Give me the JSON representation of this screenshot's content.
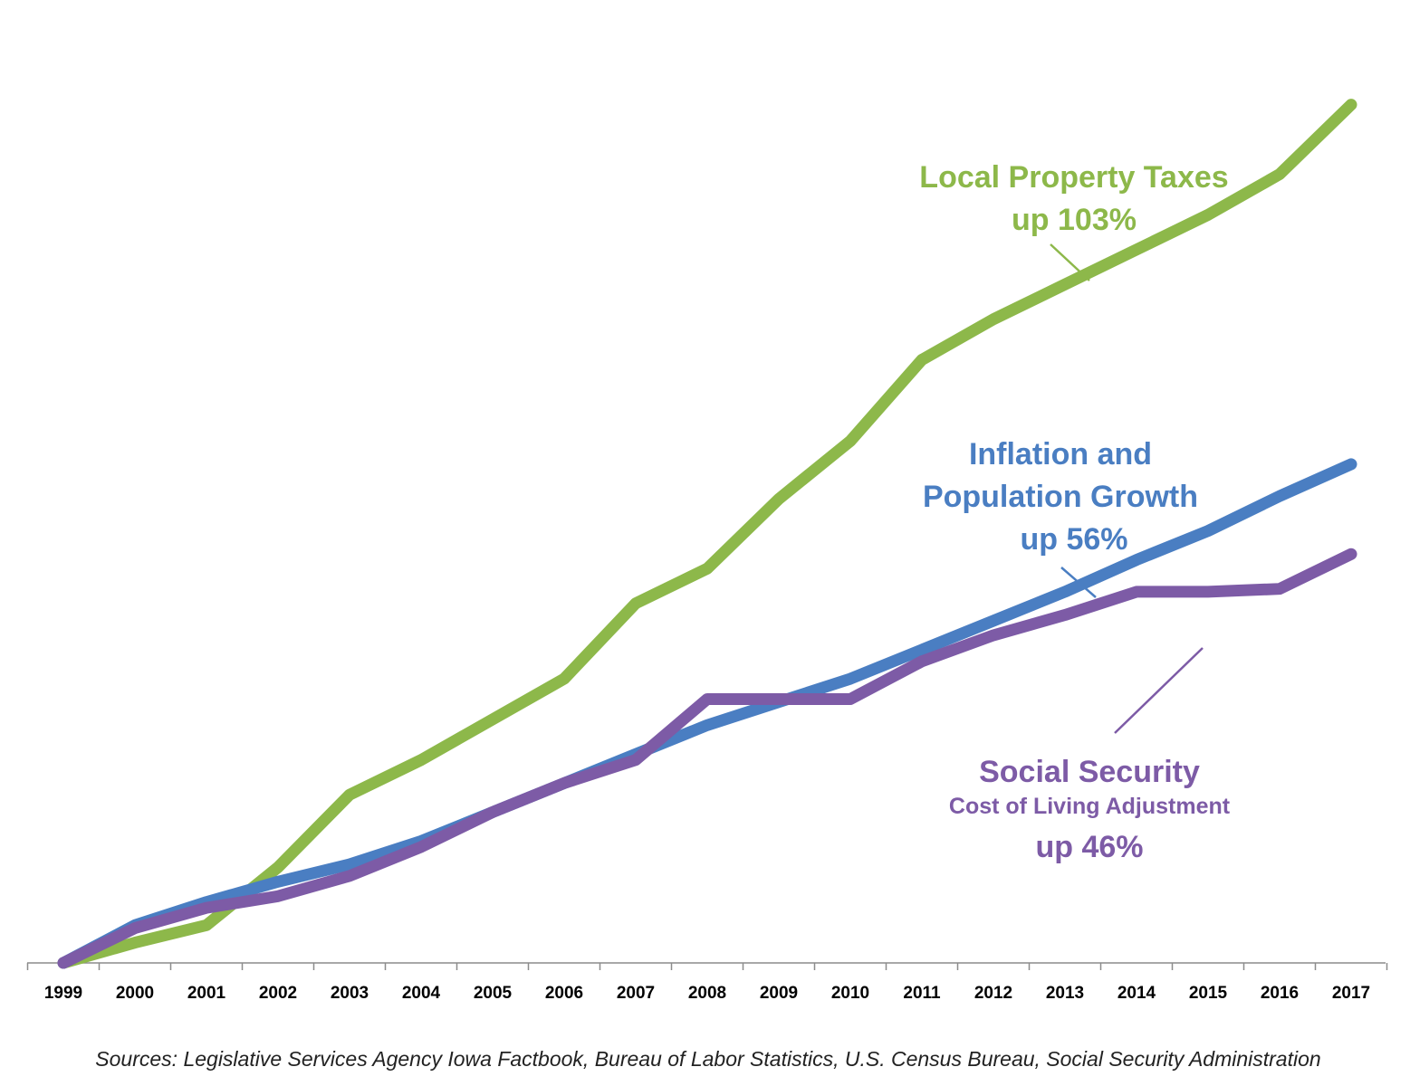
{
  "chart_data": {
    "type": "line",
    "categories": [
      "1999",
      "2000",
      "2001",
      "2002",
      "2003",
      "2004",
      "2005",
      "2006",
      "2007",
      "2008",
      "2009",
      "2010",
      "2011",
      "2012",
      "2013",
      "2014",
      "2015",
      "2016",
      "2017"
    ],
    "series": [
      {
        "key": "property_taxes",
        "color": "#8DB84A",
        "values": [
          0,
          3.5,
          6.5,
          16.5,
          29,
          35,
          42,
          49,
          62,
          68,
          80,
          90,
          104,
          111,
          117,
          123,
          129,
          136,
          148
        ]
      },
      {
        "key": "inflation_population",
        "color": "#4A7EC2",
        "values": [
          0,
          6.5,
          10.5,
          14,
          17,
          21,
          26,
          31,
          36,
          41,
          45,
          49,
          54,
          59,
          64,
          69.5,
          74.5,
          80.5,
          86
        ]
      },
      {
        "key": "social_security",
        "color": "#7D5BA6",
        "values": [
          0,
          6,
          9.5,
          11.5,
          15,
          20,
          26,
          31,
          35,
          45.5,
          45.5,
          45.5,
          52,
          56.5,
          60,
          64,
          64,
          64.5,
          70.5
        ]
      }
    ],
    "ylim": [
      0,
      152
    ],
    "grid": false,
    "legend": "none",
    "annotations": [
      {
        "key": "property_taxes",
        "lines": [
          "Local Property Taxes",
          "up 103%"
        ]
      },
      {
        "key": "inflation_population",
        "lines": [
          "Inflation and",
          "Population Growth",
          "up 56%"
        ]
      },
      {
        "key": "social_security",
        "lines": [
          "Social Security",
          "Cost of Living Adjustment",
          "up 46%"
        ]
      }
    ],
    "source": "Sources: Legislative Services Agency Iowa Factbook, Bureau of Labor Statistics, U.S. Census Bureau, Social Security Administration"
  }
}
